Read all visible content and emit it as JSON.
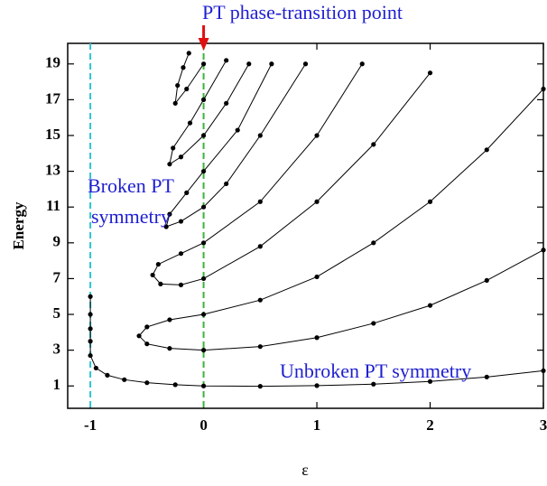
{
  "chart_data": {
    "type": "line",
    "title": "PT phase-transition point",
    "xlabel": "ε",
    "ylabel": "Energy",
    "annotations": [
      {
        "lines": [
          "Broken PT",
          "symmetry"
        ]
      },
      {
        "lines": [
          "Unbroken PT symmetry"
        ]
      }
    ],
    "xlim": [
      -1.2,
      3
    ],
    "ylim": [
      -0.25,
      20.15
    ],
    "xticks": [
      -1,
      0,
      1,
      2,
      3
    ],
    "yticks": [
      1,
      3,
      5,
      7,
      9,
      11,
      13,
      15,
      17,
      19
    ],
    "vlines": [
      {
        "x": -1,
        "color": "#2fc3d0"
      },
      {
        "x": 0,
        "color": "#3bb33b"
      }
    ],
    "arrow_color": "#e01010",
    "series": [
      {
        "color": "#000000",
        "x": [
          -1,
          -1,
          -1,
          -1,
          -1,
          -0.95,
          -0.85,
          -0.7,
          -0.5,
          -0.25,
          0,
          0.5,
          1,
          1.5,
          2,
          2.5,
          3
        ],
        "values": [
          6,
          5,
          4.2,
          3.5,
          2.7,
          2.0,
          1.6,
          1.35,
          1.18,
          1.07,
          1,
          0.98,
          1.02,
          1.1,
          1.25,
          1.5,
          1.85
        ]
      },
      {
        "color": "#000000",
        "x": [
          3,
          2.5,
          2,
          1.5,
          1,
          0.5,
          0,
          -0.3,
          -0.5,
          -0.57,
          -0.5,
          -0.3,
          0,
          0.5,
          1,
          1.5,
          2,
          2.5,
          3
        ],
        "values": [
          8.6,
          6.9,
          5.5,
          4.5,
          3.7,
          3.2,
          3.0,
          3.1,
          3.35,
          3.8,
          4.3,
          4.7,
          5.0,
          5.8,
          7.1,
          9.0,
          11.3,
          14.2,
          17.6
        ]
      },
      {
        "color": "#000000",
        "x": [
          2,
          1.5,
          1,
          0.5,
          0,
          -0.2,
          -0.38,
          -0.45,
          -0.4,
          -0.2,
          0,
          0.5,
          1,
          1.4
        ],
        "values": [
          18.5,
          14.5,
          11.3,
          8.8,
          7,
          6.65,
          6.7,
          7.2,
          7.8,
          8.4,
          9,
          11.3,
          15,
          19
        ]
      },
      {
        "color": "#000000",
        "x": [
          0.9,
          0.5,
          0.2,
          0,
          -0.2,
          -0.33,
          -0.3,
          -0.15,
          0,
          0.3,
          0.6
        ],
        "values": [
          19,
          15,
          12.3,
          11,
          10.2,
          9.9,
          10.6,
          11.8,
          13,
          15.3,
          19
        ]
      },
      {
        "color": "#000000",
        "x": [
          0.4,
          0.2,
          0,
          -0.2,
          -0.3,
          -0.27,
          -0.12,
          0,
          0.2
        ],
        "values": [
          19,
          16.8,
          15,
          13.8,
          13.4,
          14.3,
          15.7,
          17,
          19.2
        ]
      },
      {
        "color": "#000000",
        "x": [
          0,
          -0.15,
          -0.25,
          -0.23,
          -0.18,
          -0.13
        ],
        "values": [
          19,
          17.6,
          16.8,
          17.8,
          18.8,
          19.6
        ]
      }
    ]
  }
}
